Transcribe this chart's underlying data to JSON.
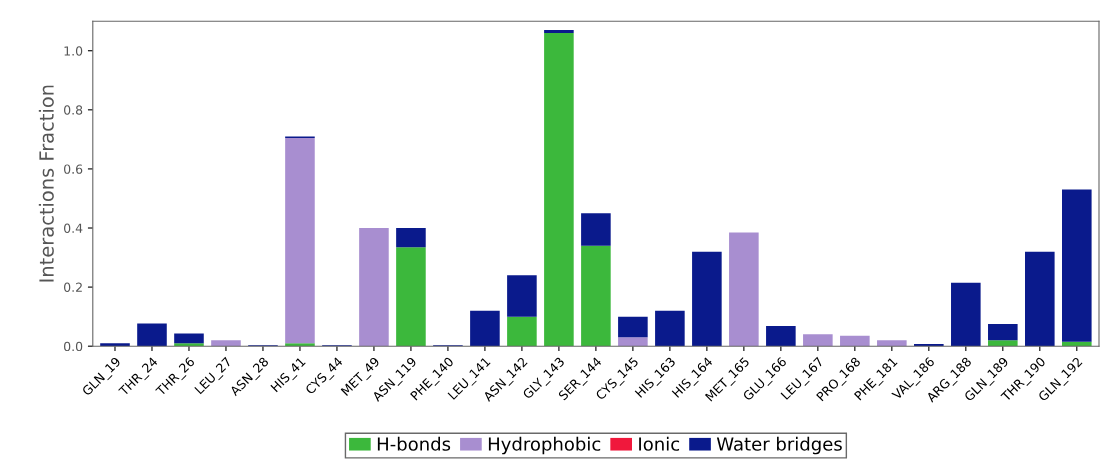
{
  "chart_data": {
    "type": "bar",
    "stacked": true,
    "ylabel": "Interactions Fraction",
    "categories": [
      "GLN_19",
      "THR_24",
      "THR_26",
      "LEU_27",
      "ASN_28",
      "HIS_41",
      "CYS_44",
      "MET_49",
      "ASN_119",
      "PHE_140",
      "LEU_141",
      "ASN_142",
      "GLY_143",
      "SER_144",
      "CYS_145",
      "HIS_163",
      "HIS_164",
      "MET_165",
      "GLU_166",
      "LEU_167",
      "PRO_168",
      "PHE_181",
      "VAL_186",
      "ARG_188",
      "GLN_189",
      "THR_190",
      "GLN_192"
    ],
    "series": [
      {
        "name": "H-bonds",
        "color": "#3cb83c",
        "values": [
          0,
          0,
          0.01,
          0,
          0,
          0.01,
          0,
          0,
          0.335,
          0,
          0,
          0.1,
          1.06,
          0.34,
          0,
          0,
          0,
          0,
          0,
          0,
          0,
          0,
          0,
          0,
          0.02,
          0,
          0.015
        ]
      },
      {
        "name": "Hydrophobic",
        "color": "#a88ed0",
        "values": [
          0,
          0,
          0,
          0.02,
          0,
          0.695,
          0,
          0.4,
          0,
          0,
          0,
          0,
          0,
          0,
          0.03,
          0,
          0,
          0.385,
          0,
          0.04,
          0.035,
          0.02,
          0,
          0,
          0,
          0,
          0
        ]
      },
      {
        "name": "Ionic",
        "color": "#f0183c",
        "values": [
          0,
          0,
          0,
          0,
          0,
          0,
          0,
          0,
          0,
          0,
          0,
          0,
          0,
          0,
          0,
          0,
          0,
          0,
          0,
          0,
          0,
          0,
          0,
          0,
          0,
          0,
          0
        ]
      },
      {
        "name": "Water bridges",
        "color": "#0a1a8c",
        "values": [
          0.01,
          0.077,
          0.033,
          0,
          0.003,
          0.005,
          0.003,
          0,
          0.065,
          0.003,
          0.12,
          0.14,
          0.01,
          0.11,
          0.07,
          0.12,
          0.32,
          0,
          0.068,
          0,
          0,
          0,
          0.007,
          0.215,
          0.055,
          0.32,
          0.515
        ]
      }
    ],
    "ylim": [
      0,
      1.1
    ],
    "yticks": [
      {
        "value": 0,
        "label": "0.0"
      },
      {
        "value": 0.2,
        "label": "0.2"
      },
      {
        "value": 0.4,
        "label": "0.4"
      },
      {
        "value": 0.6,
        "label": "0.6"
      },
      {
        "value": 0.8,
        "label": "0.8"
      },
      {
        "value": 1.0,
        "label": "1.0"
      }
    ],
    "grid": false,
    "legend": "bottom"
  }
}
